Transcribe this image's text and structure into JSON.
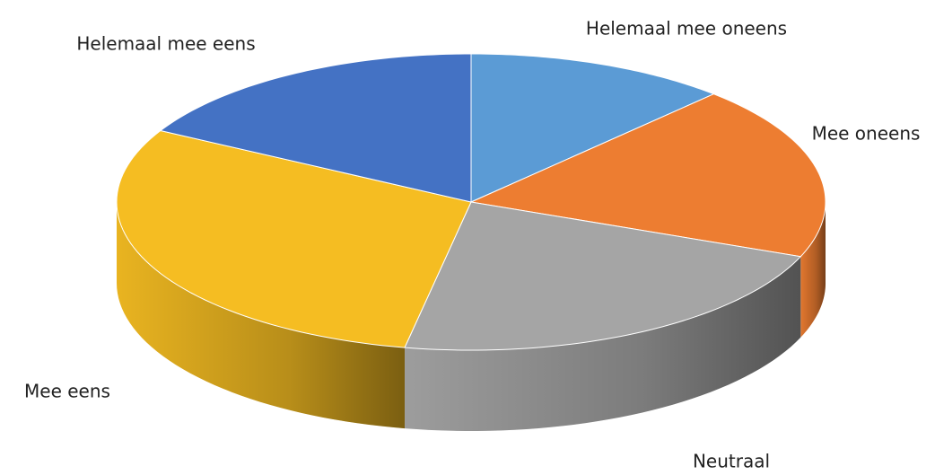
{
  "chart_data": {
    "type": "pie",
    "categories": [
      "Helemaal mee oneens",
      "Mee oneens",
      "Neutraal",
      "Mee eens",
      "Helemaal mee eens"
    ],
    "values": [
      12,
      19,
      22,
      30,
      17
    ],
    "colors": [
      "#5b9bd5",
      "#ed7d31",
      "#a5a5a5",
      "#f5bd22",
      "#4472c4"
    ]
  }
}
